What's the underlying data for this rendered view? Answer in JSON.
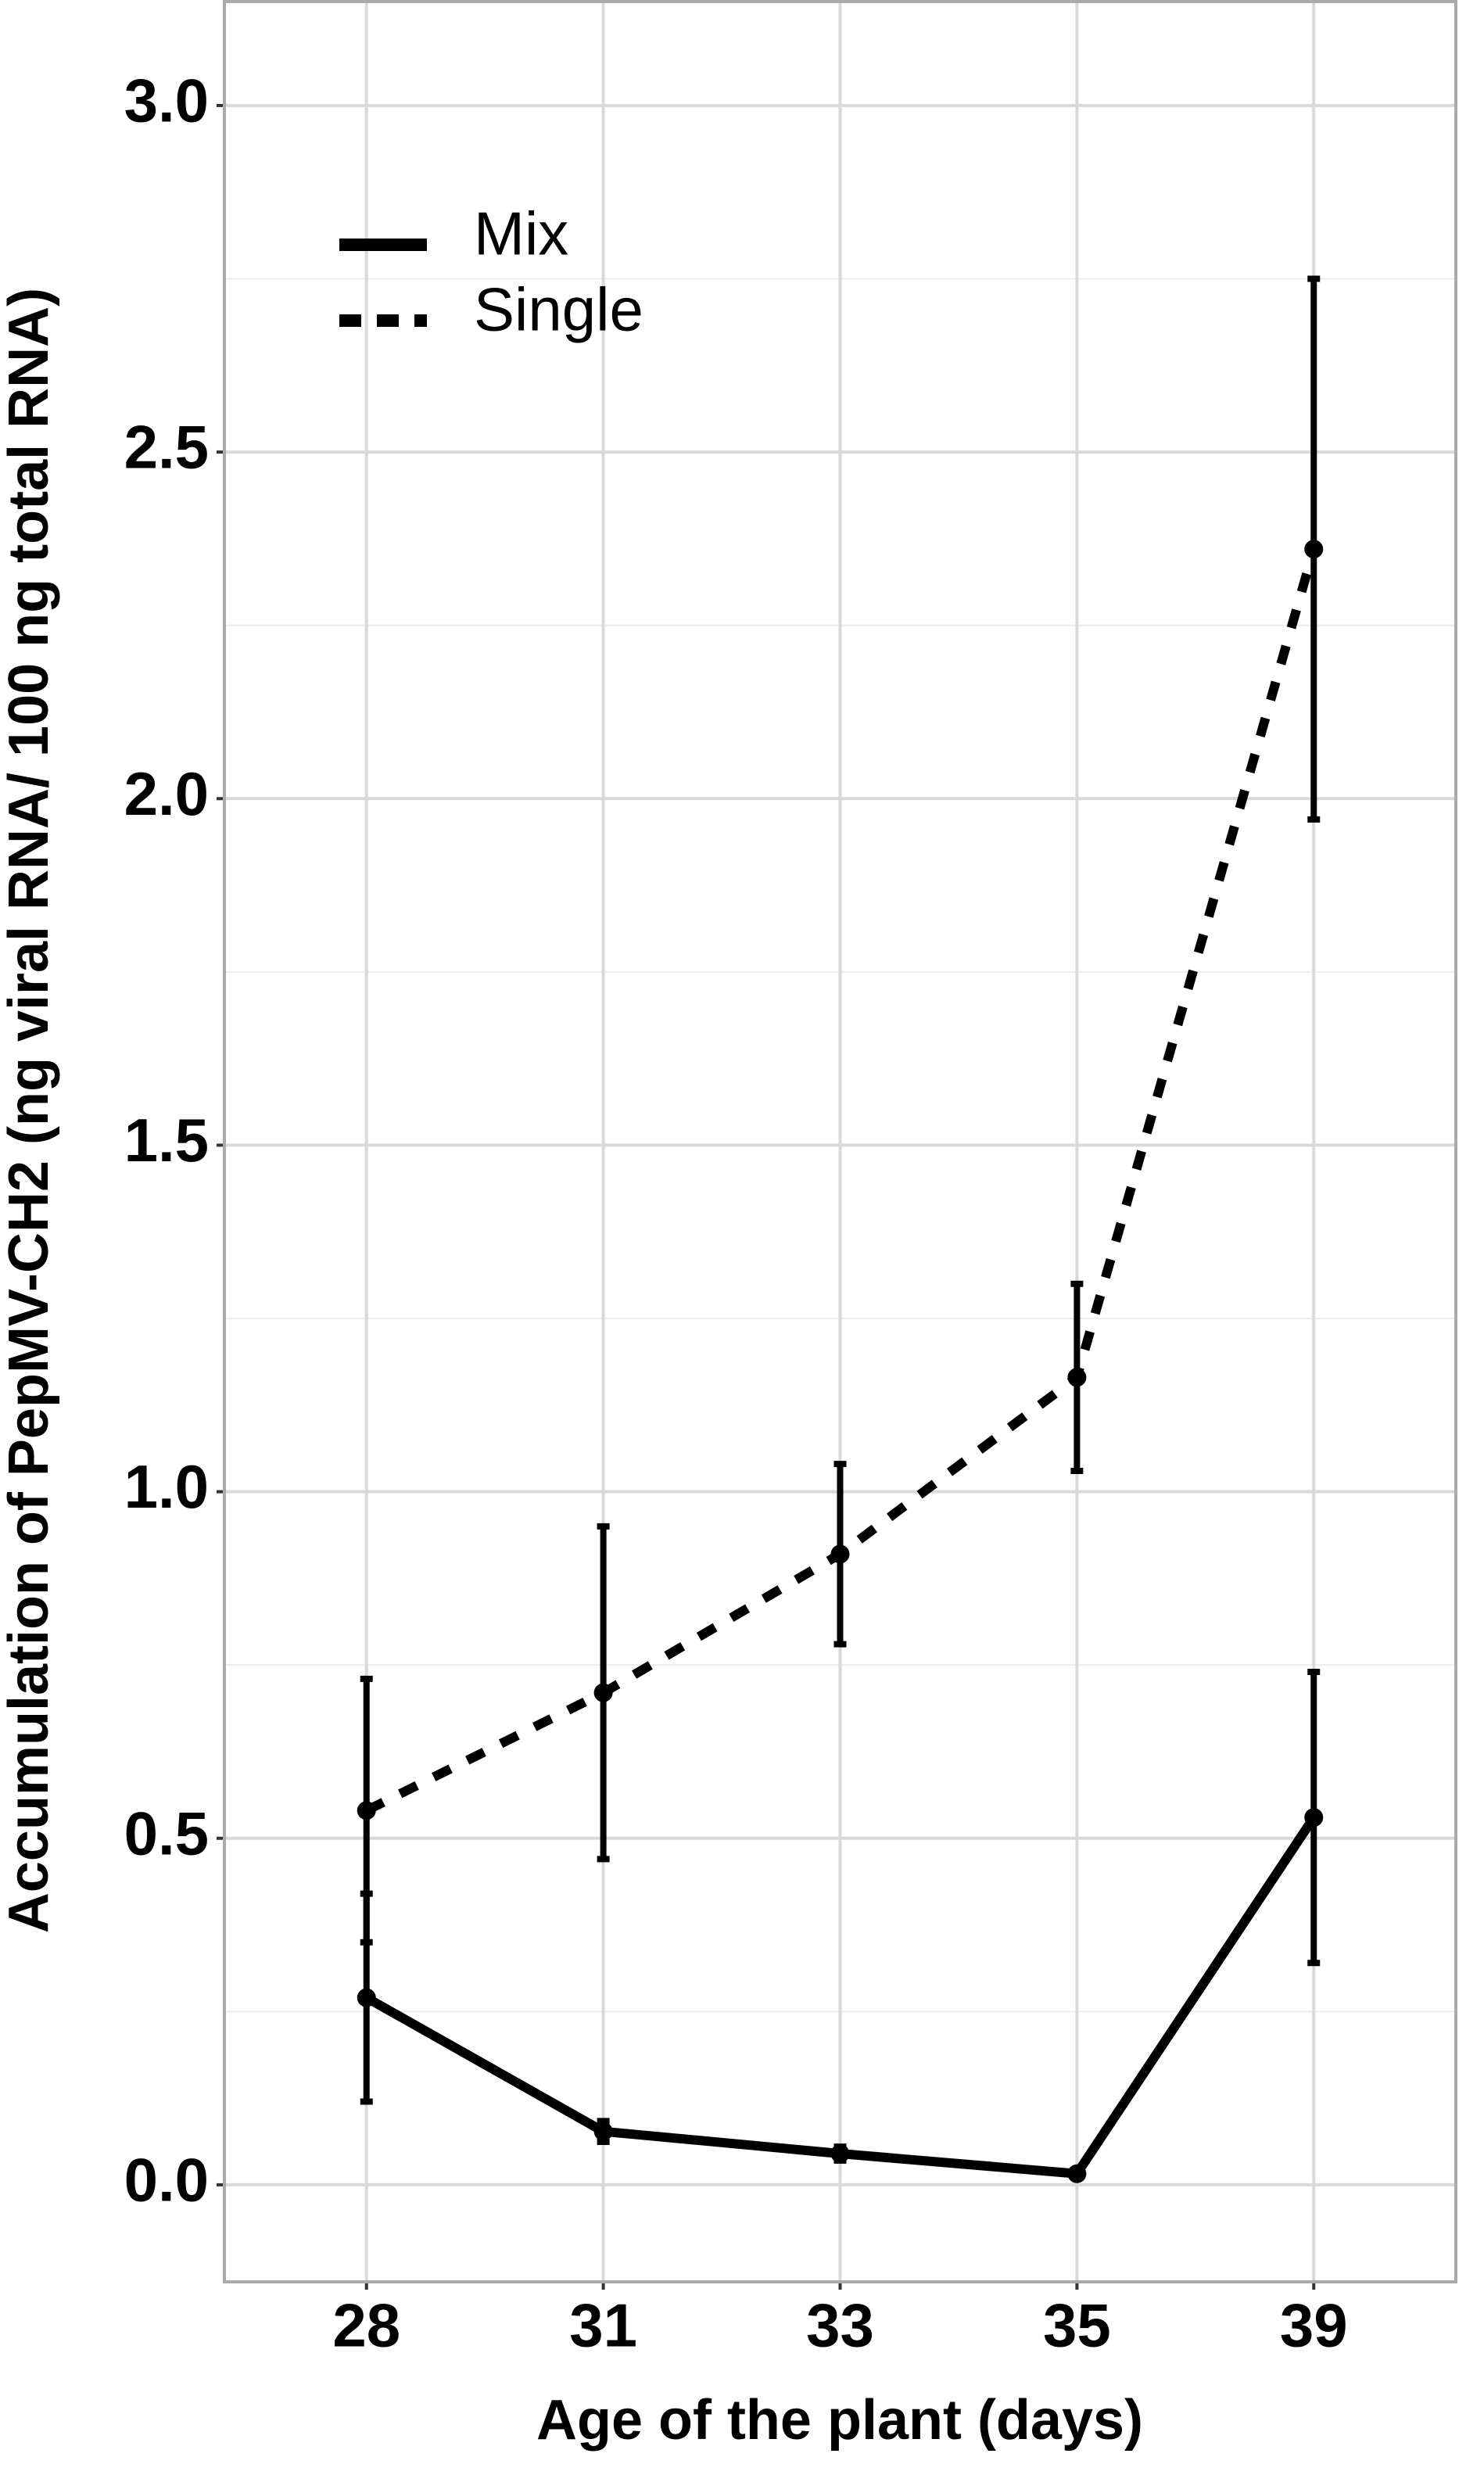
{
  "chart_data": {
    "type": "line",
    "x_label": "Age of the plant (days)",
    "y_label": "Accumulation of PepMV-CH2 (ng viral RNA/ 100 ng total RNA)",
    "categories": [
      "28",
      "31",
      "33",
      "35",
      "39"
    ],
    "series": [
      {
        "name": "Mix",
        "color": "#000000",
        "dash": "solid",
        "values": [
          0.27,
          0.077,
          0.045,
          0.016,
          0.53
        ],
        "errors": [
          0.15,
          0.015,
          0.01,
          0.005,
          0.21
        ]
      },
      {
        "name": "Single",
        "color": "#000000",
        "dash": "dashed",
        "values": [
          0.54,
          0.71,
          0.91,
          1.165,
          2.36
        ],
        "errors": [
          0.19,
          0.24,
          0.13,
          0.135,
          0.39
        ]
      }
    ],
    "ylim": [
      -0.14,
      3.15
    ],
    "yticks": [
      {
        "value": 0,
        "label": "0.0"
      },
      {
        "value": 0.5,
        "label": "0.5"
      },
      {
        "value": 1,
        "label": "1.0"
      },
      {
        "value": 1.5,
        "label": "1.5"
      },
      {
        "value": 2,
        "label": "2.0"
      },
      {
        "value": 2.5,
        "label": "2.5"
      },
      {
        "value": 3,
        "label": "3.0"
      }
    ],
    "minor_yticks": [
      0.25,
      0.75,
      1.25,
      1.75,
      2.25,
      2.75
    ],
    "grid": true,
    "legend": "top-left"
  }
}
